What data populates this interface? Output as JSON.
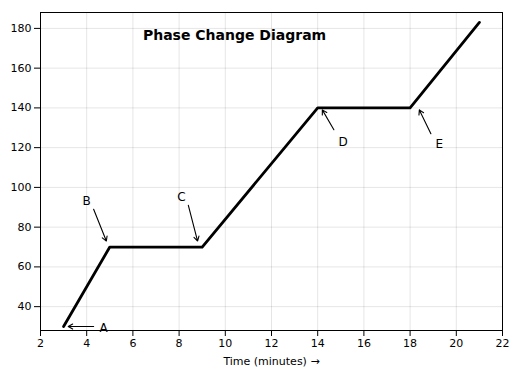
{
  "chart_data": {
    "type": "line",
    "title": "Phase Change Diagram",
    "xlabel": "Time (minutes)",
    "x": [
      3,
      5,
      9,
      14,
      18,
      21
    ],
    "values": [
      30,
      70,
      70,
      140,
      140,
      183
    ],
    "color": "#000000",
    "xlim": [
      2,
      22
    ],
    "ylim": [
      28,
      188
    ],
    "xticks": [
      2,
      4,
      6,
      8,
      10,
      12,
      14,
      16,
      18,
      20,
      22
    ],
    "yticks": [
      40,
      60,
      80,
      100,
      120,
      140,
      160,
      180
    ],
    "grid": true,
    "annotations": [
      {
        "text": "A",
        "x": 4.55,
        "y": 29,
        "arrow_start": [
          4.3,
          30
        ],
        "arrow_end": [
          3.2,
          30
        ]
      },
      {
        "text": "B",
        "x": 4.0,
        "y": 91,
        "arrow_start": [
          4.3,
          89
        ],
        "arrow_end": [
          4.85,
          73
        ]
      },
      {
        "text": "C",
        "x": 8.1,
        "y": 93,
        "arrow_start": [
          8.4,
          91
        ],
        "arrow_end": [
          8.8,
          73
        ]
      },
      {
        "text": "D",
        "x": 14.9,
        "y": 125,
        "arrow_start": [
          14.7,
          129
        ],
        "arrow_end": [
          14.2,
          139
        ]
      },
      {
        "text": "E",
        "x": 19.1,
        "y": 124,
        "arrow_start": [
          18.9,
          127
        ],
        "arrow_end": [
          18.4,
          139
        ]
      }
    ]
  }
}
